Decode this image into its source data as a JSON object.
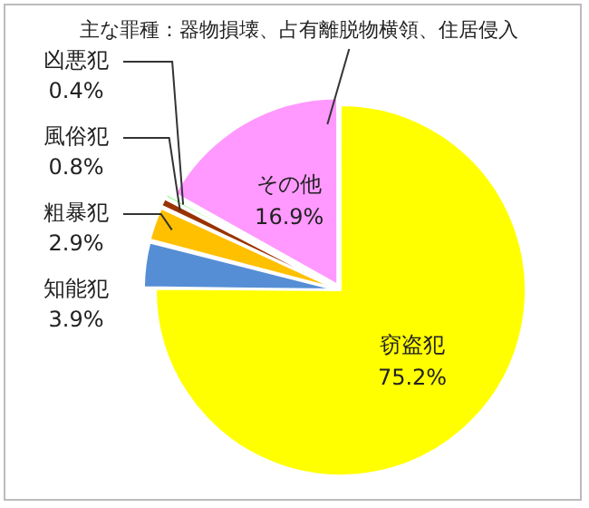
{
  "chart_data": {
    "type": "pie",
    "categories": [
      "窃盗犯",
      "知能犯",
      "粗暴犯",
      "風俗犯",
      "凶悪犯",
      "その他"
    ],
    "values": [
      75.2,
      3.9,
      2.9,
      0.8,
      0.4,
      16.9
    ],
    "colors": [
      "#ffff00",
      "#558ed5",
      "#ffc000",
      "#993300",
      "#66ff66",
      "#ff99ff"
    ],
    "value_labels": [
      "75.2%",
      "3.9%",
      "2.9%",
      "0.8%",
      "0.4%",
      "16.9%"
    ],
    "annotations": [
      "主な罪種：器物損壊、占有離脱物横領、住居侵入"
    ]
  }
}
